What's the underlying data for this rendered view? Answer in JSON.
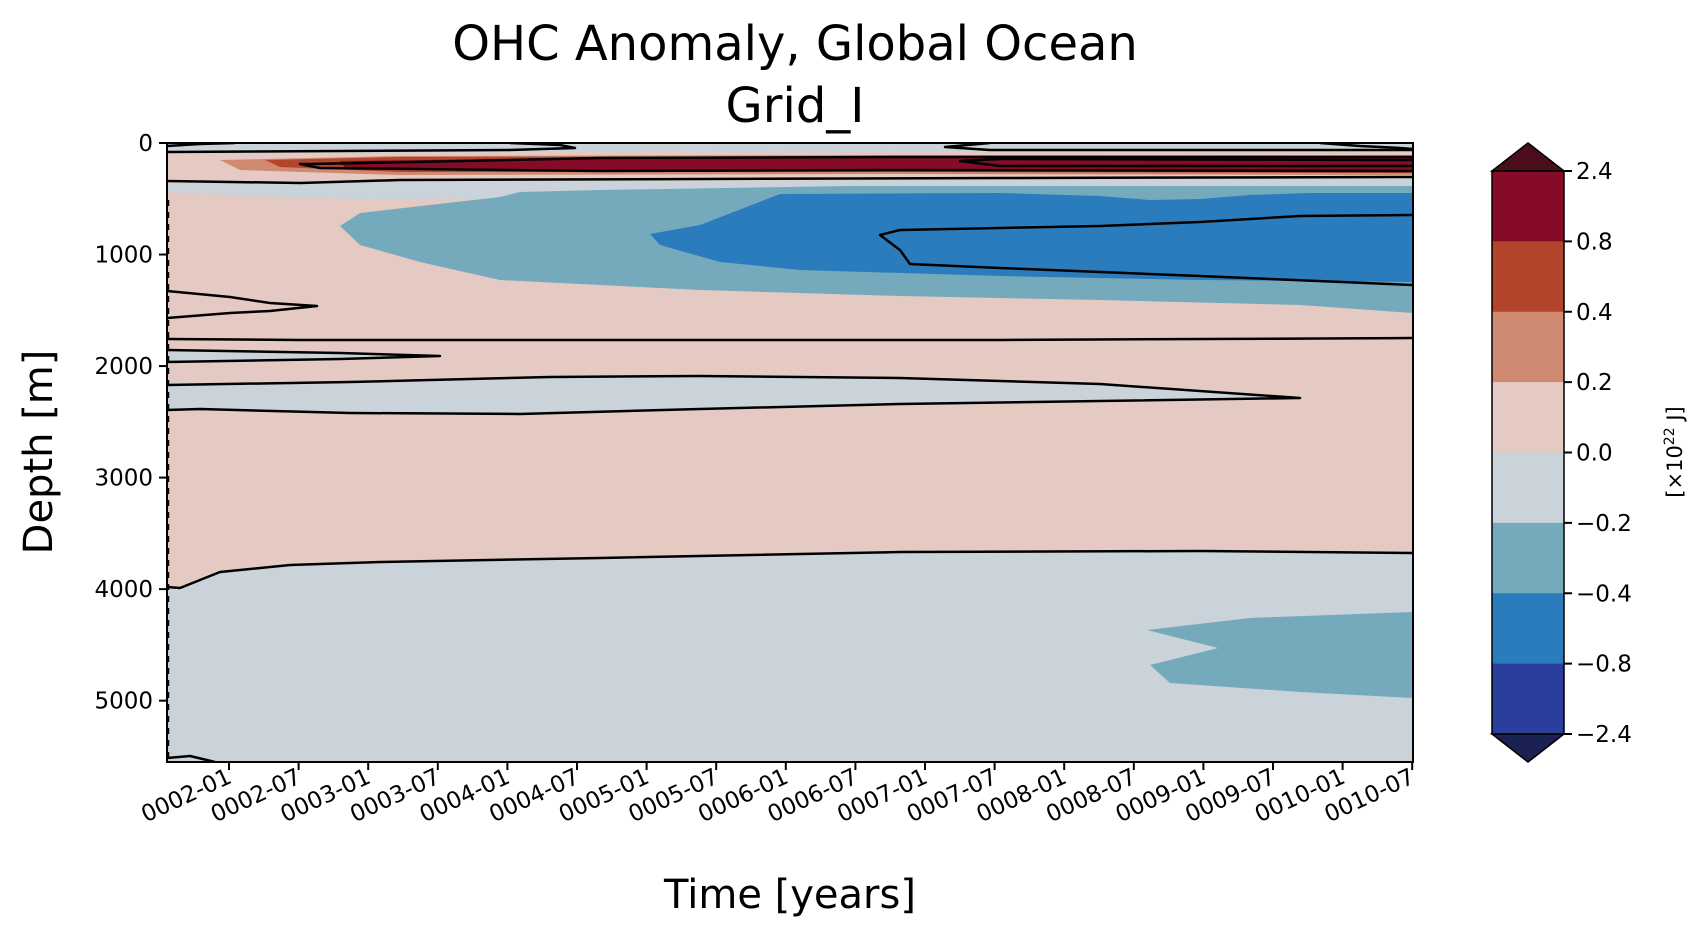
{
  "chart_data": {
    "type": "heatmap",
    "title": "OHC Anomaly, Global Ocean",
    "subtitle": "Grid_I",
    "xlabel": "Time [years]",
    "ylabel": "Depth [m]",
    "x_ticks": [
      "0002-01",
      "0002-07",
      "0003-01",
      "0003-07",
      "0004-01",
      "0004-07",
      "0005-01",
      "0005-07",
      "0006-01",
      "0006-07",
      "0007-01",
      "0007-07",
      "0008-01",
      "0008-07",
      "0009-01",
      "0009-07",
      "0010-01",
      "0010-07"
    ],
    "y_ticks": [
      0,
      1000,
      2000,
      3000,
      4000,
      5000
    ],
    "ylim": [
      5550,
      0
    ],
    "grid": false,
    "colorbar": {
      "label_prefix": "[×10",
      "label_exp": "22",
      "label_suffix": " J]",
      "levels": [
        "2.4",
        "0.8",
        "0.4",
        "0.2",
        "0.0",
        "−0.2",
        "−0.4",
        "−0.8",
        "−2.4"
      ],
      "bins_top_to_bottom": [
        {
          "range": "0.8 to 2.4",
          "color": "#860b27"
        },
        {
          "range": "0.4 to 0.8",
          "color": "#b4452d"
        },
        {
          "range": "0.2 to 0.4",
          "color": "#cf8a71"
        },
        {
          "range": "0.0 to 0.2",
          "color": "#e4cac3"
        },
        {
          "range": "-0.2 to 0.0",
          "color": "#c9d3d9"
        },
        {
          "range": "-0.4 to -0.2",
          "color": "#75aabd"
        },
        {
          "range": "-0.8 to -0.4",
          "color": "#2a7cbd"
        },
        {
          "range": "-2.4 to -0.8",
          "color": "#2a3f9c"
        }
      ],
      "extend_max_color": "#4a0f1a",
      "extend_min_color": "#1b2252"
    },
    "regions": [
      {
        "depth_range_m": [
          0,
          100
        ],
        "value_class": "-0.2 to 0.0",
        "description_level": "surface layer"
      },
      {
        "depth_range_m": [
          100,
          350
        ],
        "value_class": "0.8 to 2.4",
        "note": "warm anomaly band near 200 m intensifying after 0002-07"
      },
      {
        "depth_range_m": [
          400,
          1300
        ],
        "value_class": "-0.8 to -0.4",
        "note": "cool anomaly strengthening after 0005-01"
      },
      {
        "depth_range_m": [
          1750,
          3700
        ],
        "value_class": "0.0 to 0.2"
      },
      {
        "depth_range_m": [
          2150,
          2420
        ],
        "value_class": "-0.2 to 0.0",
        "note": "tongue extending to about 0009-07"
      },
      {
        "depth_range_m": [
          3700,
          5550
        ],
        "value_class": "-0.2 to 0.0"
      },
      {
        "depth_range_m": [
          4200,
          4950
        ],
        "value_class": "-0.4 to -0.2",
        "note": "appears after 0008-07"
      }
    ]
  }
}
